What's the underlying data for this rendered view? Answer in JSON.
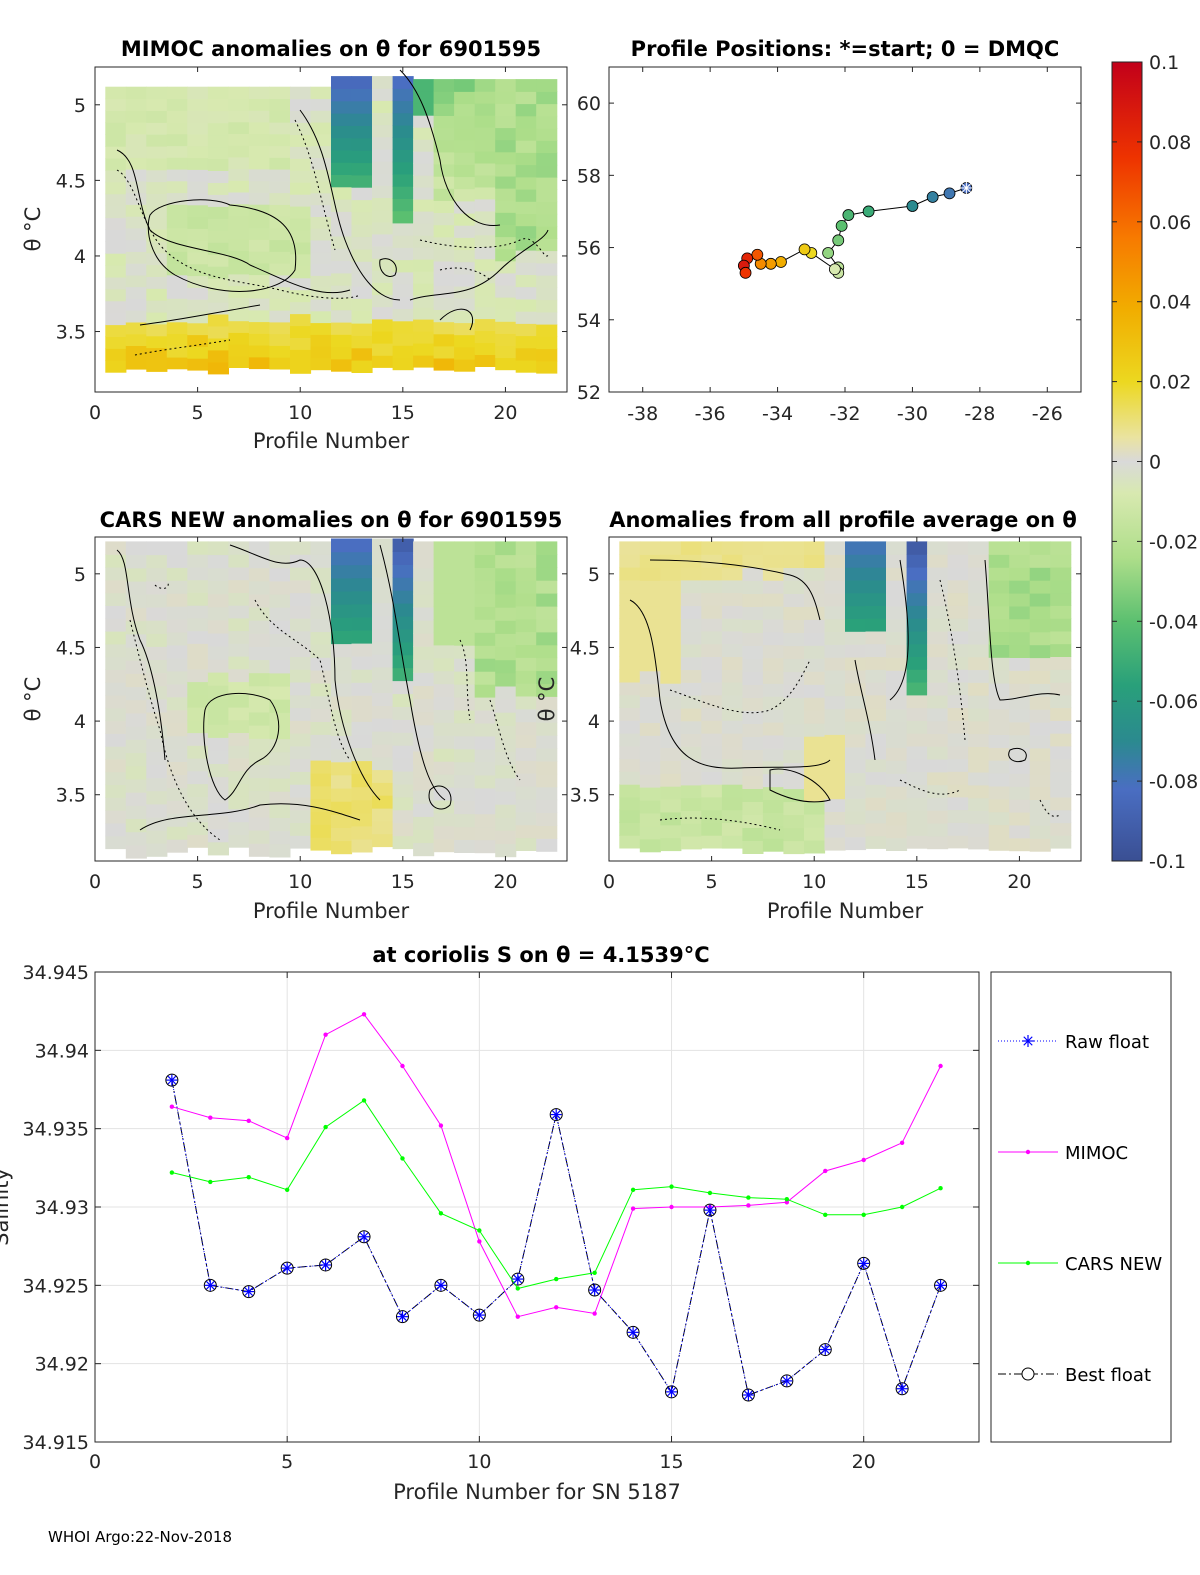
{
  "footer": "WHOI Argo:22-Nov-2018",
  "colors": {
    "raw": "#0000ff",
    "mimoc": "#ff00ff",
    "cars": "#00ff00",
    "best": "#000000"
  },
  "chart_data": [
    {
      "id": "mimoc",
      "type": "heatmap",
      "title": "MIMOC anomalies on θ  for 6901595",
      "xlabel": "Profile Number",
      "ylabel": "θ °C",
      "xlim": [
        0,
        23
      ],
      "ylim": [
        3.1,
        5.25
      ],
      "xticks": [
        "0",
        "5",
        "10",
        "15",
        "20"
      ],
      "yticks": [
        "3.5",
        "4",
        "4.5",
        "5"
      ],
      "description_values": "color = anomaly (-0.1 to 0.1)"
    },
    {
      "id": "positions",
      "type": "scatter",
      "title": "Profile Positions: *=start; 0 = DMQC",
      "xlim": [
        -39,
        -25
      ],
      "ylim": [
        52,
        61
      ],
      "xticks": [
        "-38",
        "-36",
        "-34",
        "-32",
        "-30",
        "-28",
        "-26"
      ],
      "yticks": [
        "52",
        "54",
        "56",
        "58",
        "60"
      ],
      "lon": [
        -28.4,
        -28.9,
        -29.4,
        -30.0,
        -31.3,
        -31.9,
        -32.1,
        -32.2,
        -32.5,
        -32.2,
        -32.2,
        -32.3,
        -33.0,
        -33.2,
        -33.9,
        -34.2,
        -34.5,
        -34.6,
        -34.9,
        -35.0,
        -34.95
      ],
      "lat": [
        57.65,
        57.5,
        57.4,
        57.15,
        57.0,
        56.9,
        56.6,
        56.2,
        55.85,
        55.45,
        55.3,
        55.4,
        55.85,
        55.95,
        55.6,
        55.55,
        55.55,
        55.8,
        55.7,
        55.5,
        55.3
      ],
      "anomaly": [
        -0.085,
        -0.08,
        -0.075,
        -0.07,
        -0.05,
        -0.045,
        -0.04,
        -0.035,
        -0.03,
        -0.02,
        -0.015,
        -0.01,
        0.03,
        0.035,
        0.045,
        0.05,
        0.055,
        0.07,
        0.085,
        0.09,
        0.08
      ]
    },
    {
      "id": "colorbar",
      "type": "heatmap",
      "ticks": [
        "0.1",
        "0.08",
        "0.06",
        "0.04",
        "0.02",
        "0",
        "-0.02",
        "-0.04",
        "-0.06",
        "-0.08",
        "-0.1"
      ],
      "range": [
        -0.1,
        0.1
      ]
    },
    {
      "id": "cars",
      "type": "heatmap",
      "title": "CARS NEW anomalies on θ for 6901595",
      "xlabel": "Profile Number",
      "ylabel": "θ °C",
      "xlim": [
        0,
        23
      ],
      "ylim": [
        3.05,
        5.25
      ],
      "xticks": [
        "0",
        "5",
        "10",
        "15",
        "20"
      ],
      "yticks": [
        "3.5",
        "4",
        "4.5",
        "5"
      ]
    },
    {
      "id": "avg",
      "type": "heatmap",
      "title": "Anomalies from all profile average on θ",
      "xlabel": "Profile Number",
      "ylabel": "θ °C",
      "xlim": [
        0,
        23
      ],
      "ylim": [
        3.05,
        5.25
      ],
      "xticks": [
        "0",
        "5",
        "10",
        "15",
        "20"
      ],
      "yticks": [
        "3.5",
        "4",
        "4.5",
        "5"
      ]
    },
    {
      "id": "salinity",
      "type": "line",
      "title": "at coriolis S on θ = 4.1539°C",
      "xlabel": "Profile Number for SN 5187",
      "ylabel": "Salinity",
      "xlim": [
        0,
        23
      ],
      "ylim": [
        34.915,
        34.945
      ],
      "xticks": [
        "0",
        "5",
        "10",
        "15",
        "20"
      ],
      "yticks": [
        "34.915",
        "34.92",
        "34.925",
        "34.93",
        "34.935",
        "34.94",
        "34.945"
      ],
      "x": [
        2,
        3,
        4,
        5,
        6,
        7,
        8,
        9,
        10,
        11,
        12,
        13,
        14,
        15,
        16,
        17,
        18,
        19,
        20,
        21,
        22
      ],
      "series": [
        {
          "name": "Raw float",
          "values": [
            34.9381,
            34.925,
            34.9246,
            34.9261,
            34.9263,
            34.9281,
            34.923,
            34.925,
            34.9231,
            34.9254,
            34.9359,
            34.9247,
            34.922,
            34.9182,
            34.9298,
            34.918,
            34.9189,
            34.9209,
            34.9264,
            34.9184,
            34.925
          ]
        },
        {
          "name": "MIMOC",
          "values": [
            34.9364,
            34.9357,
            34.9355,
            34.9344,
            34.941,
            34.9423,
            34.939,
            34.9352,
            34.9278,
            34.923,
            34.9236,
            34.9232,
            34.9299,
            34.93,
            34.93,
            34.9301,
            34.9303,
            34.9323,
            34.933,
            34.9341,
            34.939
          ]
        },
        {
          "name": "CARS NEW",
          "values": [
            34.9322,
            34.9316,
            34.9319,
            34.9311,
            34.9351,
            34.9368,
            34.9331,
            34.9296,
            34.9285,
            34.9248,
            34.9254,
            34.9258,
            34.9311,
            34.9313,
            34.9309,
            34.9306,
            34.9305,
            34.9295,
            34.9295,
            34.93,
            34.9312
          ]
        },
        {
          "name": "Best float",
          "values": [
            34.9381,
            34.925,
            34.9246,
            34.9261,
            34.9263,
            34.9281,
            34.923,
            34.925,
            34.9231,
            34.9254,
            34.9359,
            34.9247,
            34.922,
            34.9182,
            34.9298,
            34.918,
            34.9189,
            34.9209,
            34.9264,
            34.9184,
            34.925
          ]
        }
      ]
    }
  ]
}
